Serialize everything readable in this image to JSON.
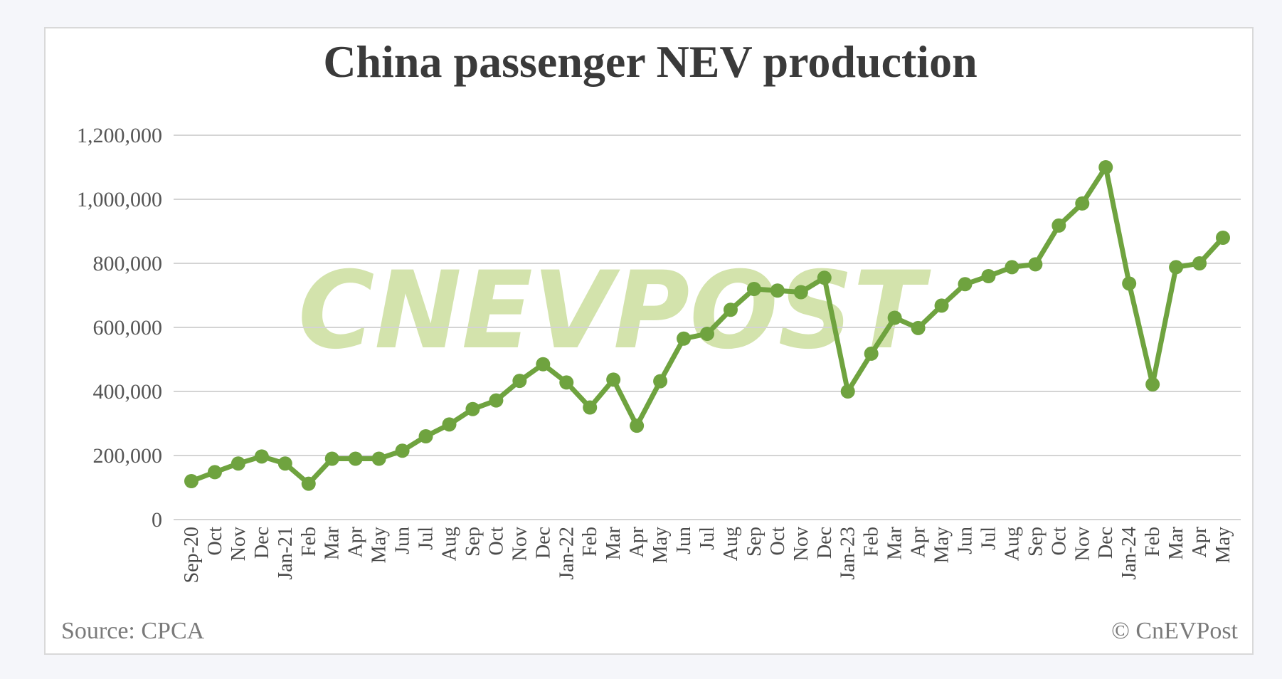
{
  "chart_data": {
    "type": "line",
    "title": "China passenger NEV production",
    "source": "Source: CPCA",
    "credit": "© CnEVPost",
    "watermark": "CNEVPOST",
    "ylim": [
      0,
      1200000
    ],
    "yticks": [
      0,
      200000,
      400000,
      600000,
      800000,
      1000000,
      1200000
    ],
    "ytick_labels": [
      "0",
      "200,000",
      "400,000",
      "600,000",
      "800,000",
      "1,000,000",
      "1,200,000"
    ],
    "grid": true,
    "legend": "none",
    "color": "#6fa33f",
    "categories": [
      "Sep-20",
      "Oct",
      "Nov",
      "Dec",
      "Jan-21",
      "Feb",
      "Mar",
      "Apr",
      "May",
      "Jun",
      "Jul",
      "Aug",
      "Sep",
      "Oct",
      "Nov",
      "Dec",
      "Jan-22",
      "Feb",
      "Mar",
      "Apr",
      "May",
      "Jun",
      "Jul",
      "Aug",
      "Sep",
      "Oct",
      "Nov",
      "Dec",
      "Jan-23",
      "Feb",
      "Mar",
      "Apr",
      "May",
      "Jun",
      "Jul",
      "Aug",
      "Sep",
      "Oct",
      "Nov",
      "Dec",
      "Jan-24",
      "Feb",
      "Mar",
      "Apr",
      "May"
    ],
    "values": [
      120000,
      148000,
      175000,
      197000,
      175000,
      112000,
      190000,
      190000,
      190000,
      215000,
      260000,
      297000,
      345000,
      372000,
      433000,
      485000,
      428000,
      350000,
      437000,
      293000,
      432000,
      565000,
      580000,
      655000,
      720000,
      715000,
      710000,
      755000,
      400000,
      518000,
      630000,
      598000,
      668000,
      735000,
      760000,
      788000,
      797000,
      918000,
      987000,
      1100000,
      737000,
      422000,
      788000,
      800000,
      880000
    ]
  }
}
